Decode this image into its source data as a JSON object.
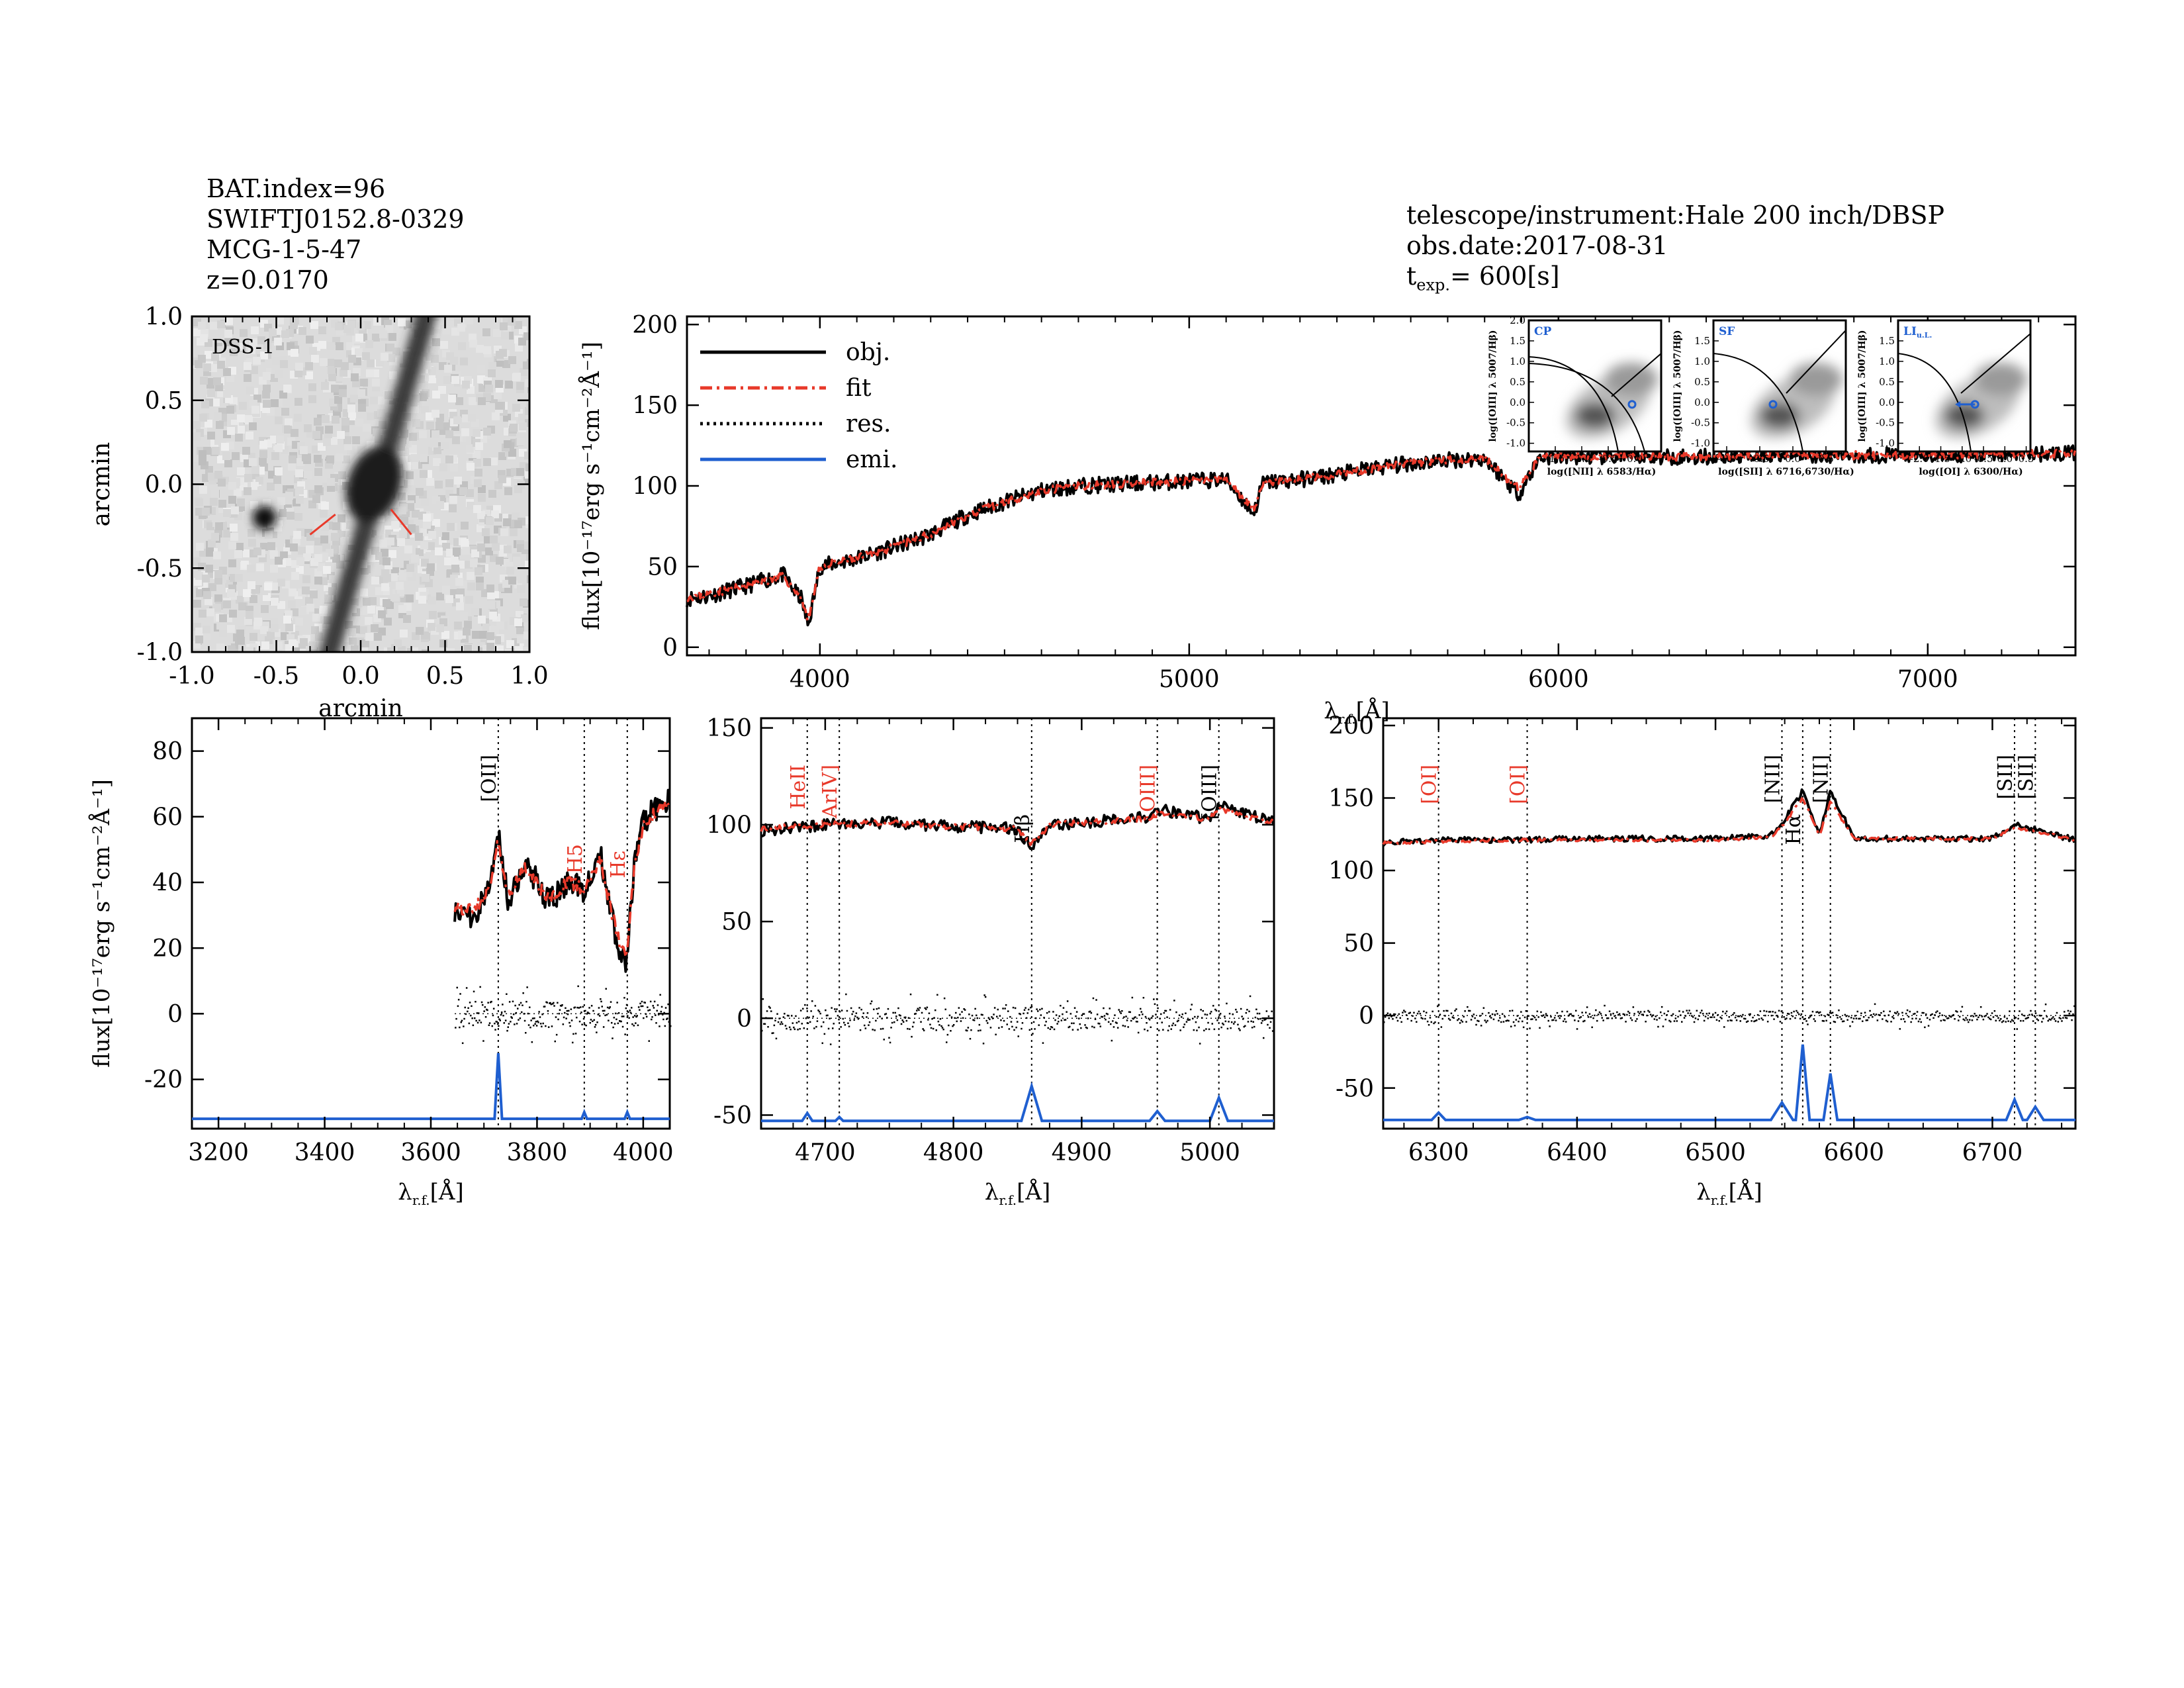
{
  "header_left": {
    "bat_index": "BAT.index=96",
    "swift_name": "SWIFTJ0152.8-0329",
    "galaxy": "MCG-1-5-47",
    "redshift": "z=0.0170"
  },
  "header_right": {
    "instrument": "telescope/instrument:Hale 200 inch/DBSP",
    "obs_date": "obs.date:2017-08-31",
    "t_exp_label": "t",
    "t_exp_sub": "exp.",
    "t_exp_value": "= 600[s]"
  },
  "colors": {
    "obj": "#000000",
    "fit": "#e8392a",
    "res": "#000000",
    "emi": "#1f5fd0",
    "label_red": "#e8392a"
  },
  "chart_data": [
    {
      "id": "dss_image",
      "type": "heatmap",
      "label": "DSS-1",
      "xlabel": "arcmin",
      "ylabel": "arcmin",
      "xlim": [
        -1.0,
        1.0
      ],
      "ylim": [
        -1.0,
        1.0
      ],
      "xticks": [
        "-1.0",
        "-0.5",
        "0.0",
        "0.5",
        "1.0"
      ],
      "yticks": [
        "1.0",
        "0.5",
        "0.0",
        "-0.5",
        "-1.0"
      ]
    },
    {
      "id": "full_spectrum",
      "type": "line",
      "ylabel": "flux[10⁻¹⁷erg s⁻¹cm⁻²Å⁻¹]",
      "xlabel": "λr.f.[Å]",
      "xlim": [
        3640,
        7400
      ],
      "ylim": [
        -5,
        205
      ],
      "xticks": [
        "4000",
        "5000",
        "6000",
        "7000"
      ],
      "yticks": [
        "0",
        "50",
        "100",
        "150",
        "200"
      ],
      "legend": [
        "obj.",
        "fit",
        "res.",
        "emi."
      ],
      "legend_position": "top-left",
      "series": [
        {
          "name": "obj.",
          "x": [
            3640,
            3700,
            3800,
            3900,
            3930,
            3950,
            3968,
            4000,
            4100,
            4200,
            4300,
            4400,
            4500,
            4600,
            4700,
            4800,
            4900,
            5000,
            5100,
            5175,
            5200,
            5300,
            5400,
            5500,
            5600,
            5700,
            5800,
            5893,
            5950,
            6000,
            6200,
            6400,
            6600,
            6800,
            7000,
            7200,
            7400
          ],
          "values": [
            30,
            32,
            38,
            45,
            35,
            30,
            13,
            50,
            55,
            62,
            70,
            82,
            90,
            97,
            100,
            101,
            102,
            103,
            104,
            83,
            102,
            104,
            107,
            111,
            114,
            116,
            117,
            95,
            118,
            118,
            118,
            118,
            120,
            119,
            119,
            120,
            120
          ]
        },
        {
          "name": "fit",
          "x": [
            3640,
            3700,
            3800,
            3900,
            3930,
            3950,
            3968,
            4000,
            4100,
            4200,
            4300,
            4400,
            4500,
            4600,
            4700,
            4800,
            4900,
            5000,
            5100,
            5175,
            5200,
            5300,
            5400,
            5500,
            5600,
            5700,
            5800,
            5893,
            5950,
            6000,
            6200,
            6400,
            6600,
            6800,
            7000,
            7200,
            7400
          ],
          "values": [
            31,
            33,
            38,
            44,
            36,
            31,
            16,
            50,
            55,
            62,
            70,
            82,
            90,
            97,
            100,
            101,
            102,
            103,
            104,
            86,
            102,
            104,
            107,
            111,
            114,
            116,
            117,
            98,
            118,
            118,
            118,
            118,
            120,
            119,
            119,
            120,
            120
          ]
        }
      ]
    },
    {
      "id": "bpt_nii",
      "type": "scatter",
      "class_label": "CP",
      "ylabel": "log([OIII] λ 5007/Hβ)",
      "xlabel": "log([NII] λ 6583/Hα)",
      "xlim": [
        -2.0,
        0.5
      ],
      "ylim": [
        -1.2,
        2.0
      ],
      "xticks": [
        "-1.5",
        "-1.0",
        "-0.5",
        "0.0"
      ],
      "yticks": [
        "2.0",
        "1.5",
        "1.0",
        "0.5",
        "0.0",
        "-0.5",
        "-1.0"
      ],
      "point": {
        "x": -0.05,
        "y": -0.05
      }
    },
    {
      "id": "bpt_sii",
      "type": "scatter",
      "class_label": "SF",
      "ylabel": "log([OIII] λ 5007/Hβ)",
      "xlabel": "log([SII] λ 6716,6730/Hα)",
      "xlim": [
        -1.2,
        0.8
      ],
      "ylim": [
        -1.2,
        2.0
      ],
      "xticks": [
        "-1.0",
        "-0.5",
        "0.0",
        "0.5"
      ],
      "yticks": [
        "1.5",
        "1.0",
        "0.5",
        "0.0",
        "-0.5",
        "-1.0"
      ],
      "point": {
        "x": -0.3,
        "y": -0.05
      }
    },
    {
      "id": "bpt_oi",
      "type": "scatter",
      "class_label": "LI",
      "class_sub": "u.L.",
      "ylabel": "log([OIII] λ 5007/Hβ)",
      "xlabel": "log([OI] λ 6300/Hα)",
      "xlim": [
        -2.5,
        0.6
      ],
      "ylim": [
        -1.2,
        2.0
      ],
      "xticks": [
        "-2.0",
        "-1.5",
        "-1.0",
        "-0.5",
        "0.0",
        "0.5"
      ],
      "yticks": [
        "1.5",
        "1.0",
        "0.5",
        "0.0",
        "-0.5",
        "-1.0"
      ],
      "point": {
        "x": -0.7,
        "y": -0.05
      }
    },
    {
      "id": "zoom_oii",
      "type": "line",
      "ylabel": "flux[10⁻¹⁷erg s⁻¹cm⁻²Å⁻¹]",
      "xlabel": "λr.f.[Å]",
      "xlim": [
        3150,
        4050
      ],
      "ylim": [
        -35,
        90
      ],
      "xticks": [
        "3200",
        "3400",
        "3600",
        "3800",
        "4000"
      ],
      "yticks": [
        "80",
        "60",
        "40",
        "20",
        "0",
        "-20"
      ],
      "lines": [
        {
          "label": "[OII]",
          "x": 3727,
          "color": "black"
        },
        {
          "label": "H5",
          "x": 3889,
          "color": "red"
        },
        {
          "label": "Hε",
          "x": 3970,
          "color": "red"
        }
      ],
      "series": [
        {
          "name": "obj.",
          "x": [
            3645,
            3680,
            3710,
            3727,
            3745,
            3780,
            3820,
            3860,
            3889,
            3920,
            3940,
            3955,
            3968,
            3985,
            4000,
            4020,
            4050
          ],
          "values": [
            32,
            30,
            38,
            55,
            35,
            46,
            34,
            40,
            38,
            48,
            30,
            20,
            14,
            48,
            58,
            62,
            66
          ]
        },
        {
          "name": "fit",
          "x": [
            3645,
            3680,
            3710,
            3727,
            3745,
            3780,
            3820,
            3860,
            3889,
            3920,
            3940,
            3955,
            3968,
            3985,
            4000,
            4020,
            4050
          ],
          "values": [
            33,
            31,
            38,
            53,
            36,
            45,
            35,
            40,
            38,
            47,
            31,
            22,
            16,
            47,
            57,
            61,
            65
          ]
        },
        {
          "name": "emi.",
          "x": [
            3150,
            3720,
            3727,
            3734,
            3884,
            3889,
            3894,
            3965,
            3970,
            3975,
            4050
          ],
          "values": [
            -32,
            -32,
            -12,
            -32,
            -32,
            -30,
            -32,
            -32,
            -30,
            -32,
            -32
          ]
        }
      ]
    },
    {
      "id": "zoom_hb_oiii",
      "type": "line",
      "xlabel": "λr.f.[Å]",
      "xlim": [
        4650,
        5050
      ],
      "ylim": [
        -57,
        155
      ],
      "xticks": [
        "4700",
        "4800",
        "4900",
        "5000"
      ],
      "yticks": [
        "150",
        "100",
        "50",
        "0",
        "-50"
      ],
      "lines": [
        {
          "label": "HeII",
          "x": 4686,
          "color": "red"
        },
        {
          "label": "[ArIV]",
          "x": 4711,
          "color": "red"
        },
        {
          "label": "Hβ",
          "x": 4861,
          "color": "black"
        },
        {
          "label": "[OIII]",
          "x": 4959,
          "color": "red"
        },
        {
          "label": "[OIII]",
          "x": 5007,
          "color": "black"
        }
      ],
      "series": [
        {
          "name": "obj.",
          "x": [
            4650,
            4700,
            4750,
            4800,
            4850,
            4861,
            4875,
            4900,
            4950,
            4959,
            5000,
            5007,
            5050
          ],
          "values": [
            97,
            100,
            101,
            99,
            98,
            88,
            100,
            101,
            104,
            108,
            103,
            110,
            101
          ]
        },
        {
          "name": "fit",
          "x": [
            4650,
            4700,
            4750,
            4800,
            4850,
            4861,
            4875,
            4900,
            4950,
            4959,
            5000,
            5007,
            5050
          ],
          "values": [
            98,
            100,
            101,
            99,
            98,
            90,
            100,
            101,
            103,
            106,
            103,
            108,
            101
          ]
        },
        {
          "name": "emi.",
          "x": [
            4650,
            4682,
            4686,
            4690,
            4708,
            4711,
            4714,
            4853,
            4861,
            4869,
            4953,
            4959,
            4965,
            5000,
            5007,
            5014,
            5050
          ],
          "values": [
            -53,
            -53,
            -49,
            -53,
            -53,
            -51,
            -53,
            -53,
            -35,
            -53,
            -53,
            -48,
            -53,
            -53,
            -41,
            -53,
            -53
          ]
        }
      ]
    },
    {
      "id": "zoom_ha_nii",
      "type": "line",
      "xlabel": "λr.f.[Å]",
      "xlim": [
        6260,
        6760
      ],
      "ylim": [
        -78,
        205
      ],
      "xticks": [
        "6300",
        "6400",
        "6500",
        "6600",
        "6700"
      ],
      "yticks": [
        "200",
        "150",
        "100",
        "50",
        "0",
        "-50"
      ],
      "lines": [
        {
          "label": "[OI]",
          "x": 6300,
          "color": "red"
        },
        {
          "label": "[OI]",
          "x": 6364,
          "color": "red"
        },
        {
          "label": "[NII]",
          "x": 6548,
          "color": "black"
        },
        {
          "label": "Hα",
          "x": 6563,
          "color": "black"
        },
        {
          "label": "[NII]",
          "x": 6583,
          "color": "black"
        },
        {
          "label": "[SII]",
          "x": 6716,
          "color": "black"
        },
        {
          "label": "[SII]",
          "x": 6731,
          "color": "black"
        }
      ],
      "series": [
        {
          "name": "obj.",
          "x": [
            6260,
            6300,
            6364,
            6400,
            6500,
            6540,
            6548,
            6563,
            6575,
            6583,
            6600,
            6700,
            6716,
            6731,
            6760
          ],
          "values": [
            119,
            121,
            121,
            122,
            122,
            124,
            132,
            155,
            124,
            155,
            122,
            122,
            132,
            128,
            121
          ]
        },
        {
          "name": "fit",
          "x": [
            6260,
            6300,
            6364,
            6400,
            6500,
            6540,
            6548,
            6563,
            6575,
            6583,
            6600,
            6700,
            6716,
            6731,
            6760
          ],
          "values": [
            119,
            120,
            121,
            121,
            121,
            123,
            130,
            150,
            124,
            148,
            122,
            122,
            130,
            127,
            121
          ]
        },
        {
          "name": "emi.",
          "x": [
            6260,
            6295,
            6300,
            6305,
            6358,
            6364,
            6370,
            6540,
            6548,
            6556,
            6558,
            6563,
            6568,
            6578,
            6583,
            6588,
            6710,
            6716,
            6722,
            6725,
            6731,
            6737,
            6760
          ],
          "values": [
            -72,
            -72,
            -67,
            -72,
            -72,
            -70,
            -72,
            -72,
            -60,
            -72,
            -72,
            -20,
            -72,
            -72,
            -40,
            -72,
            -72,
            -58,
            -72,
            -72,
            -63,
            -72,
            -72
          ]
        }
      ]
    }
  ],
  "shared_labels": {
    "lambda": "λ",
    "lambda_sub": "r.f.",
    "angstrom_unit": "[Å]"
  }
}
